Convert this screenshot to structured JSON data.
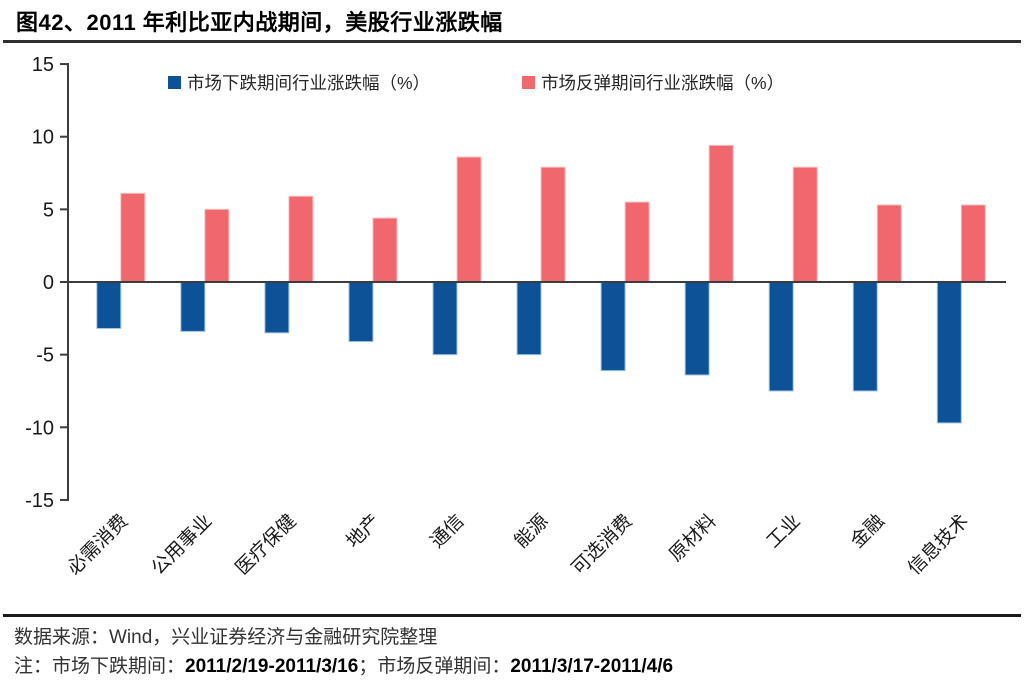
{
  "title": "图42、2011 年利比亚内战期间，美股行业涨跌幅",
  "chart_data": {
    "type": "bar",
    "title": "图42、2011 年利比亚内战期间，美股行业涨跌幅",
    "categories": [
      "必需消费",
      "公用事业",
      "医疗保健",
      "地产",
      "通信",
      "能源",
      "可选消费",
      "原材料",
      "工业",
      "金融",
      "信息技术"
    ],
    "series": [
      {
        "name": "市场下跌期间行业涨跌幅（%）",
        "color": "#0d5296",
        "outline": "#9fc5e8",
        "values": [
          -3.2,
          -3.4,
          -3.5,
          -4.1,
          -5.0,
          -5.0,
          -6.1,
          -6.4,
          -7.5,
          -7.5,
          -9.7
        ]
      },
      {
        "name": "市场反弹期间行业涨跌幅（%）",
        "color": "#f0676d",
        "outline": "#f9bcbe",
        "values": [
          6.1,
          5.0,
          5.9,
          4.4,
          8.6,
          7.9,
          5.5,
          9.4,
          7.9,
          5.3,
          5.3
        ]
      }
    ],
    "xlabel": "",
    "ylabel": "",
    "ylim": [
      -15,
      15
    ],
    "yticks": [
      15,
      10,
      5,
      0,
      -5,
      -10,
      -15
    ],
    "grid": false,
    "legend_position": "top-center",
    "axis_color": "#3c3c3c",
    "tick_label_color": "#1a1a1a"
  },
  "footer": {
    "source": "数据来源：Wind，兴业证券经济与金融研究院整理",
    "note": {
      "prefix": "注：市场下跌期间：",
      "decline_period": "2011/2/19-2011/3/16",
      "separator": "；市场反弹期间：",
      "rebound_period": "2011/3/17-2011/4/6"
    }
  }
}
